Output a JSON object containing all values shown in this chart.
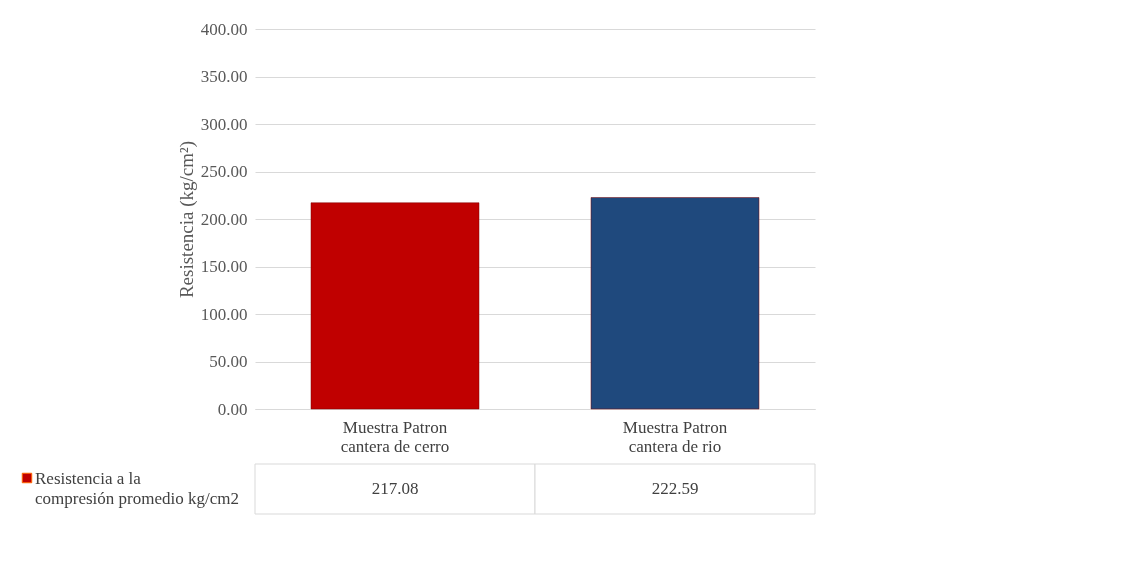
{
  "chart_data": {
    "type": "bar",
    "ylabel": "Resistencia (kg/cm²)",
    "categories": [
      "Muestra Patron cantera de cerro",
      "Muestra Patron cantera de rio"
    ],
    "series": [
      {
        "name": "Resistencia a la compresión promedio kg/cm2",
        "color": "#c00000",
        "colors": [
          "#c00000",
          "#1f497d"
        ],
        "values": [
          217.08,
          222.59
        ]
      }
    ],
    "ylim": [
      0,
      400
    ],
    "yticks": [
      {
        "value": 0,
        "label": "0.00"
      },
      {
        "value": 50,
        "label": "50.00"
      },
      {
        "value": 100,
        "label": "100.00"
      },
      {
        "value": 150,
        "label": "150.00"
      },
      {
        "value": 200,
        "label": "200.00"
      },
      {
        "value": 250,
        "label": "250.00"
      },
      {
        "value": 300,
        "label": "300.00"
      },
      {
        "value": 350,
        "label": "350.00"
      },
      {
        "value": 400,
        "label": "400.00"
      }
    ],
    "grid": "y",
    "legend": "bottom",
    "data_labels": true
  }
}
